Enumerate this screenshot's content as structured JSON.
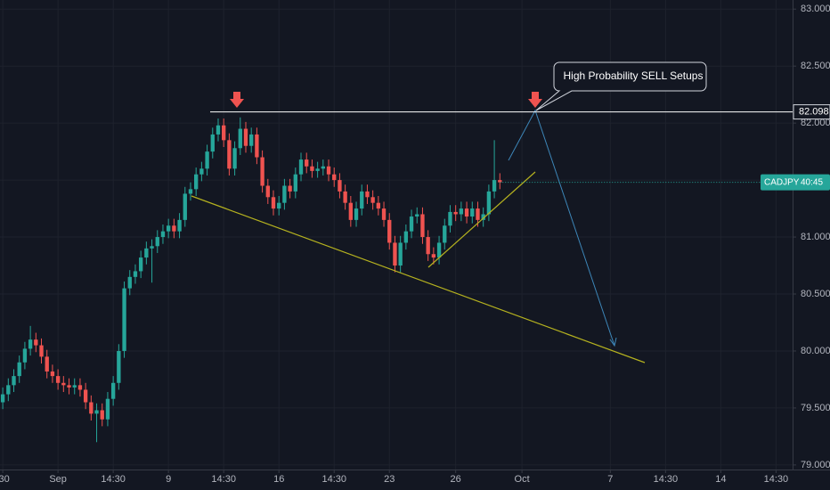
{
  "chart_data": {
    "type": "candlestick",
    "symbol": "CADJPY",
    "countdown": "40:45",
    "annotation": "High Probability SELL Setups",
    "level": 82.098,
    "level_label": "82.098",
    "up_color": "#26a69a",
    "down_color": "#ef5350",
    "xlim": [
      -0.5,
      143
    ],
    "xticks": [
      {
        "value": 0,
        "label": ":30"
      },
      {
        "value": 10,
        "label": "Sep"
      },
      {
        "value": 20,
        "label": "14:30"
      },
      {
        "value": 30,
        "label": "9"
      },
      {
        "value": 40,
        "label": "14:30"
      },
      {
        "value": 50,
        "label": "16"
      },
      {
        "value": 60,
        "label": "14:30"
      },
      {
        "value": 70,
        "label": "23"
      },
      {
        "value": 82,
        "label": "26"
      },
      {
        "value": 94,
        "label": "Oct"
      },
      {
        "value": 110,
        "label": "7"
      },
      {
        "value": 120,
        "label": "14:30"
      },
      {
        "value": 130,
        "label": "14"
      },
      {
        "value": 140,
        "label": "14:30"
      }
    ],
    "ylim": [
      78.96,
      83.08
    ],
    "yticks": [
      {
        "value": 79,
        "label": "79.000"
      },
      {
        "value": 79.5,
        "label": "79.500"
      },
      {
        "value": 80,
        "label": "80.000"
      },
      {
        "value": 80.5,
        "label": "80.500"
      },
      {
        "value": 81,
        "label": "81.000"
      },
      {
        "value": 81.5,
        "label": "81.500"
      },
      {
        "value": 82,
        "label": "82.000"
      },
      {
        "value": 82.5,
        "label": "82.500"
      },
      {
        "value": 83,
        "label": "83.000"
      }
    ],
    "open": [
      79.55,
      79.62,
      79.7,
      79.78,
      79.9,
      80.02,
      80.1,
      80.05,
      79.95,
      79.82,
      79.78,
      79.72,
      79.7,
      79.68,
      79.7,
      79.66,
      79.55,
      79.45,
      79.48,
      79.4,
      79.58,
      79.72,
      80.0,
      80.55,
      80.65,
      80.7,
      80.82,
      80.9,
      80.92,
      81.0,
      81.05,
      81.1,
      81.05,
      81.15,
      81.38,
      81.42,
      81.55,
      81.6,
      81.75,
      81.9,
      81.98,
      81.85,
      81.6,
      81.78,
      81.95,
      81.8,
      81.9,
      81.7,
      81.45,
      81.35,
      81.25,
      81.3,
      81.45,
      81.4,
      81.55,
      81.68,
      81.62,
      81.58,
      81.6,
      81.62,
      81.55,
      81.5,
      81.4,
      81.3,
      81.15,
      81.25,
      81.4,
      81.35,
      81.3,
      81.25,
      81.15,
      80.95,
      80.75,
      80.95,
      81.05,
      81.18,
      81.2,
      81.0,
      80.85,
      80.82,
      80.95,
      81.1,
      81.22,
      81.2,
      81.25,
      81.18,
      81.25,
      81.15,
      81.2,
      81.4,
      81.5
    ],
    "high": [
      79.68,
      79.76,
      79.84,
      79.96,
      80.08,
      80.22,
      80.16,
      80.11,
      80.01,
      79.88,
      79.84,
      79.78,
      79.76,
      79.76,
      79.76,
      79.72,
      79.61,
      79.54,
      79.54,
      79.64,
      79.78,
      80.06,
      80.61,
      80.71,
      80.76,
      80.88,
      80.96,
      80.98,
      81.06,
      81.11,
      81.16,
      81.16,
      81.21,
      81.44,
      81.48,
      81.61,
      81.66,
      81.81,
      81.96,
      82.04,
      82.04,
      81.91,
      81.84,
      82.05,
      82.01,
      81.96,
      81.96,
      81.76,
      81.51,
      81.41,
      81.36,
      81.51,
      81.51,
      81.61,
      81.74,
      81.74,
      81.68,
      81.66,
      81.68,
      81.68,
      81.61,
      81.56,
      81.46,
      81.36,
      81.31,
      81.46,
      81.46,
      81.41,
      81.36,
      81.31,
      81.21,
      81.01,
      81.01,
      81.11,
      81.24,
      81.26,
      81.26,
      81.06,
      80.91,
      81.01,
      81.16,
      81.28,
      81.28,
      81.31,
      81.31,
      81.31,
      81.31,
      81.26,
      81.46,
      81.85,
      81.56
    ],
    "low": [
      79.49,
      79.56,
      79.64,
      79.72,
      79.84,
      79.96,
      79.99,
      79.89,
      79.76,
      79.72,
      79.66,
      79.64,
      79.62,
      79.62,
      79.6,
      79.49,
      79.39,
      79.2,
      79.34,
      79.34,
      79.52,
      79.66,
      79.94,
      80.49,
      80.59,
      80.64,
      80.76,
      80.6,
      80.86,
      80.94,
      80.99,
      80.99,
      80.99,
      81.09,
      81.32,
      81.36,
      81.49,
      81.54,
      81.69,
      81.84,
      81.79,
      81.54,
      81.54,
      81.72,
      81.74,
      81.74,
      81.64,
      81.39,
      81.29,
      81.19,
      81.19,
      81.24,
      81.34,
      81.34,
      81.49,
      81.56,
      81.52,
      81.52,
      81.54,
      81.49,
      81.44,
      81.34,
      81.24,
      81.09,
      81.09,
      81.19,
      81.29,
      81.24,
      81.19,
      81.09,
      80.89,
      80.69,
      80.69,
      80.89,
      80.99,
      81.12,
      80.94,
      80.79,
      80.76,
      80.76,
      80.89,
      81.04,
      81.14,
      81.14,
      81.12,
      81.12,
      81.09,
      81.09,
      81.14,
      81.34,
      81.42
    ],
    "close": [
      79.62,
      79.7,
      79.78,
      79.9,
      80.02,
      80.1,
      80.05,
      79.95,
      79.82,
      79.78,
      79.72,
      79.7,
      79.68,
      79.7,
      79.66,
      79.55,
      79.45,
      79.48,
      79.4,
      79.58,
      79.72,
      80.0,
      80.55,
      80.65,
      80.7,
      80.82,
      80.9,
      80.92,
      81.0,
      81.05,
      81.1,
      81.05,
      81.15,
      81.38,
      81.42,
      81.55,
      81.6,
      81.75,
      81.9,
      81.98,
      81.85,
      81.6,
      81.78,
      81.95,
      81.8,
      81.9,
      81.7,
      81.45,
      81.35,
      81.25,
      81.3,
      81.45,
      81.4,
      81.55,
      81.68,
      81.62,
      81.58,
      81.6,
      81.62,
      81.55,
      81.5,
      81.4,
      81.3,
      81.15,
      81.25,
      81.4,
      81.35,
      81.3,
      81.25,
      81.15,
      80.95,
      80.75,
      80.95,
      81.05,
      81.18,
      81.2,
      81.0,
      80.85,
      80.82,
      80.95,
      81.1,
      81.22,
      81.2,
      81.25,
      81.18,
      81.25,
      81.15,
      81.2,
      81.4,
      81.5,
      81.48
    ]
  }
}
